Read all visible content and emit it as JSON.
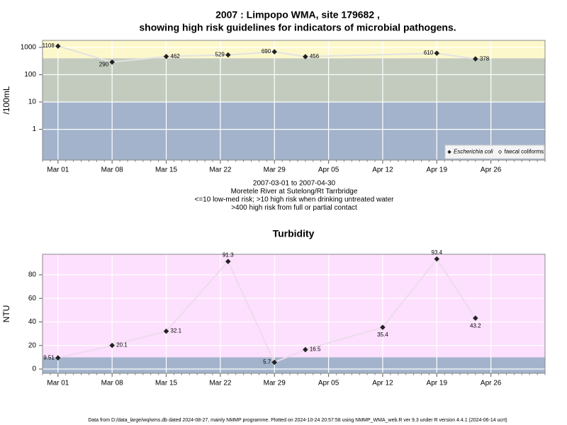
{
  "title": [
    "2007 : Limpopo WMA, site 179682 ,",
    "showing high risk guidelines for indicators of microbial pathogens."
  ],
  "footer": "Data from D:/data_large/wq/wms.db dated 2024-08-27, mainly NMMP programme. Plotted on 2024-10-24 20:57:58 using NMMP_WMA_web.R ver 9.3 under R version 4.4.1 (2024-06-14 ucrt)",
  "chart_data": [
    {
      "type": "line",
      "ylabel": "/100mL",
      "log": true,
      "ylim": [
        0.075,
        1800
      ],
      "yticks": [
        1,
        10,
        100,
        1000
      ],
      "xlim": [
        "2007-02-27",
        "2007-05-03"
      ],
      "xticks": [
        {
          "value": "2007-03-01",
          "label": "Mar 01"
        },
        {
          "value": "2007-03-08",
          "label": "Mar 08"
        },
        {
          "value": "2007-03-15",
          "label": "Mar 15"
        },
        {
          "value": "2007-03-22",
          "label": "Mar 22"
        },
        {
          "value": "2007-03-29",
          "label": "Mar 29"
        },
        {
          "value": "2007-04-05",
          "label": "Apr 05"
        },
        {
          "value": "2007-04-12",
          "label": "Apr 12"
        },
        {
          "value": "2007-04-19",
          "label": "Apr 19"
        },
        {
          "value": "2007-04-26",
          "label": "Apr 26"
        }
      ],
      "grid": true,
      "guidelines": [
        10,
        400
      ],
      "band_colors": [
        "#a3b3cb",
        "#c3cbbf",
        "#fdf8cc"
      ],
      "line_color": "#e2e2e2",
      "x": [
        "2007-03-01",
        "2007-03-08",
        "2007-03-15",
        "2007-03-23",
        "2007-03-29",
        "2007-04-02",
        "2007-04-19",
        "2007-04-24"
      ],
      "series": [
        {
          "name": "Escherichia coli",
          "marker": "filled",
          "color": "#222222",
          "values": [
            1108,
            290,
            462,
            529,
            690,
            456,
            610,
            378
          ]
        },
        {
          "name": "faecal coliforms",
          "marker": "open",
          "color": "#222222",
          "values": [
            null,
            null,
            null,
            null,
            null,
            null,
            null,
            null
          ]
        }
      ],
      "legend": "bottom-right",
      "notes": [
        "2007-03-01 to 2007-04-30",
        "Moretele River at Sutelong/Rt Tarrbridge",
        "<=10 low-med risk; >10 high risk when drinking untreated water",
        ">400 high risk from full or partial contact"
      ]
    },
    {
      "type": "line",
      "title": "Turbidity",
      "ylabel": "NTU",
      "log": false,
      "ylim": [
        -3.6,
        97.4
      ],
      "yticks": [
        0,
        20,
        40,
        60,
        80
      ],
      "xlim": [
        "2007-02-27",
        "2007-05-03"
      ],
      "xticks": [
        {
          "value": "2007-03-01",
          "label": "Mar 01"
        },
        {
          "value": "2007-03-08",
          "label": "Mar 08"
        },
        {
          "value": "2007-03-15",
          "label": "Mar 15"
        },
        {
          "value": "2007-03-22",
          "label": "Mar 22"
        },
        {
          "value": "2007-03-29",
          "label": "Mar 29"
        },
        {
          "value": "2007-04-05",
          "label": "Apr 05"
        },
        {
          "value": "2007-04-12",
          "label": "Apr 12"
        },
        {
          "value": "2007-04-19",
          "label": "Apr 19"
        },
        {
          "value": "2007-04-26",
          "label": "Apr 26"
        }
      ],
      "grid": true,
      "guidelines": [
        10
      ],
      "band_colors": [
        "#a3b3cb",
        "#fde0fd"
      ],
      "line_color": "#ecdcec",
      "x": [
        "2007-03-01",
        "2007-03-08",
        "2007-03-15",
        "2007-03-23",
        "2007-03-29",
        "2007-04-02",
        "2007-04-12",
        "2007-04-19",
        "2007-04-24"
      ],
      "series": [
        {
          "name": "Turbidity",
          "marker": "filled",
          "color": "#222222",
          "values": [
            9.51,
            20.1,
            32.1,
            91.3,
            5.7,
            16.5,
            35.4,
            93.4,
            43.2
          ]
        }
      ]
    }
  ]
}
